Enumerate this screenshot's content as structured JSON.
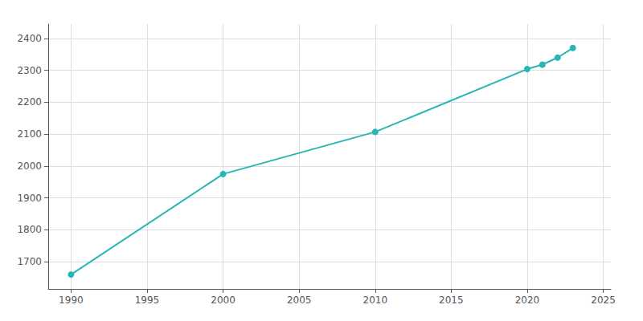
{
  "chart_data": {
    "type": "line",
    "x": [
      1990,
      2000,
      2010,
      2020,
      2021,
      2022,
      2023
    ],
    "values": [
      1660,
      1975,
      2107,
      2304,
      2318,
      2340,
      2370
    ],
    "color": "#2ab5b5",
    "marker": "circle",
    "xlim": [
      1988.5,
      2025.5
    ],
    "xticks": [
      1990,
      1995,
      2000,
      2005,
      2010,
      2015,
      2020,
      2025
    ],
    "ylim": [
      1615,
      2445
    ],
    "yticks": [
      1700,
      1800,
      1900,
      2000,
      2100,
      2200,
      2300,
      2400
    ],
    "grid": true
  }
}
